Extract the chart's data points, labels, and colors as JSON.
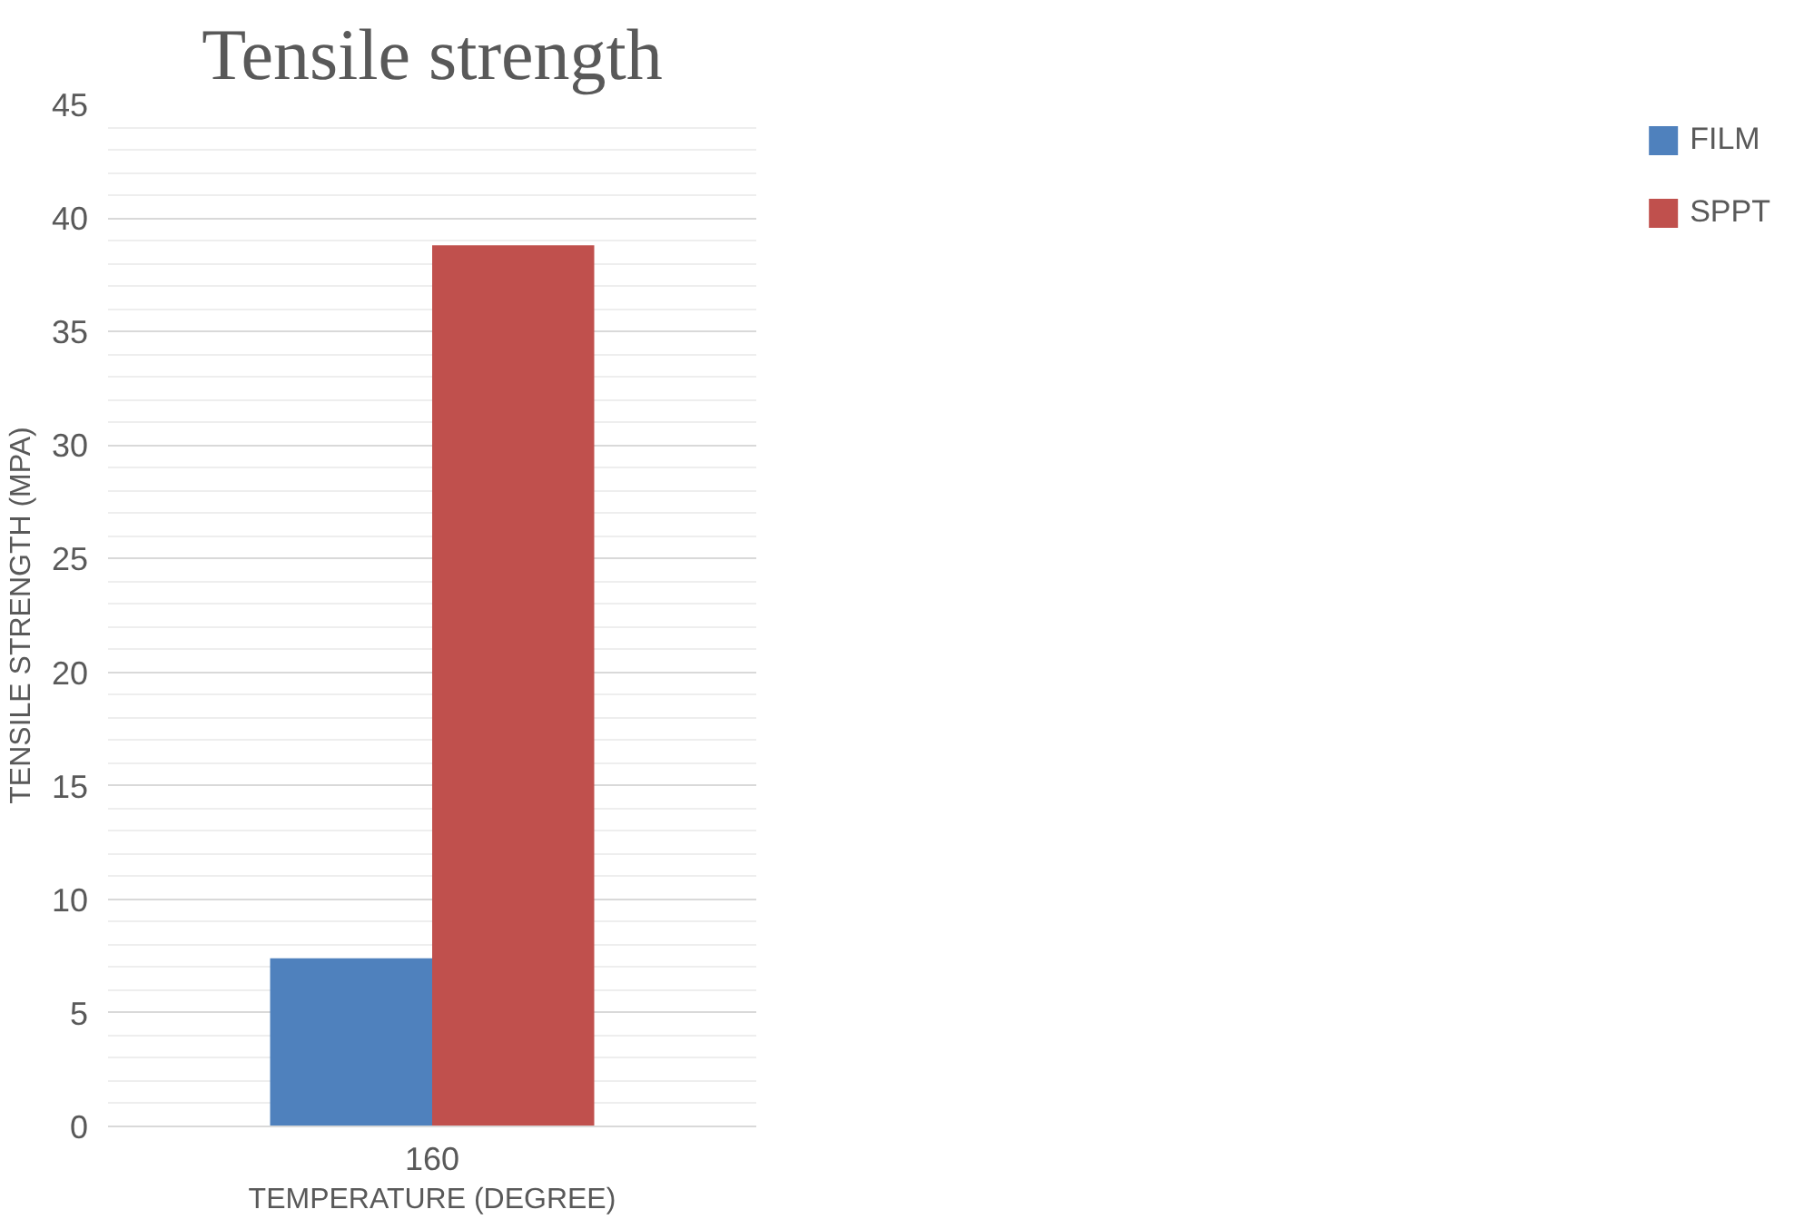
{
  "chart_data": {
    "type": "bar",
    "title": "Tensile strength",
    "xlabel": "TEMPERATURE (DEGREE)",
    "ylabel": "TENSILE STRENGTH (MPA)",
    "categories": [
      "160"
    ],
    "series": [
      {
        "name": "FILM",
        "color": "#4f81bd",
        "values": [
          7.4
        ]
      },
      {
        "name": "SPPT",
        "color": "#c0504d",
        "values": [
          38.8
        ]
      }
    ],
    "ylim": [
      0,
      45
    ],
    "yticks": [
      0,
      5,
      10,
      15,
      20,
      25,
      30,
      35,
      40,
      45
    ],
    "grid": "y",
    "legend": "right"
  }
}
